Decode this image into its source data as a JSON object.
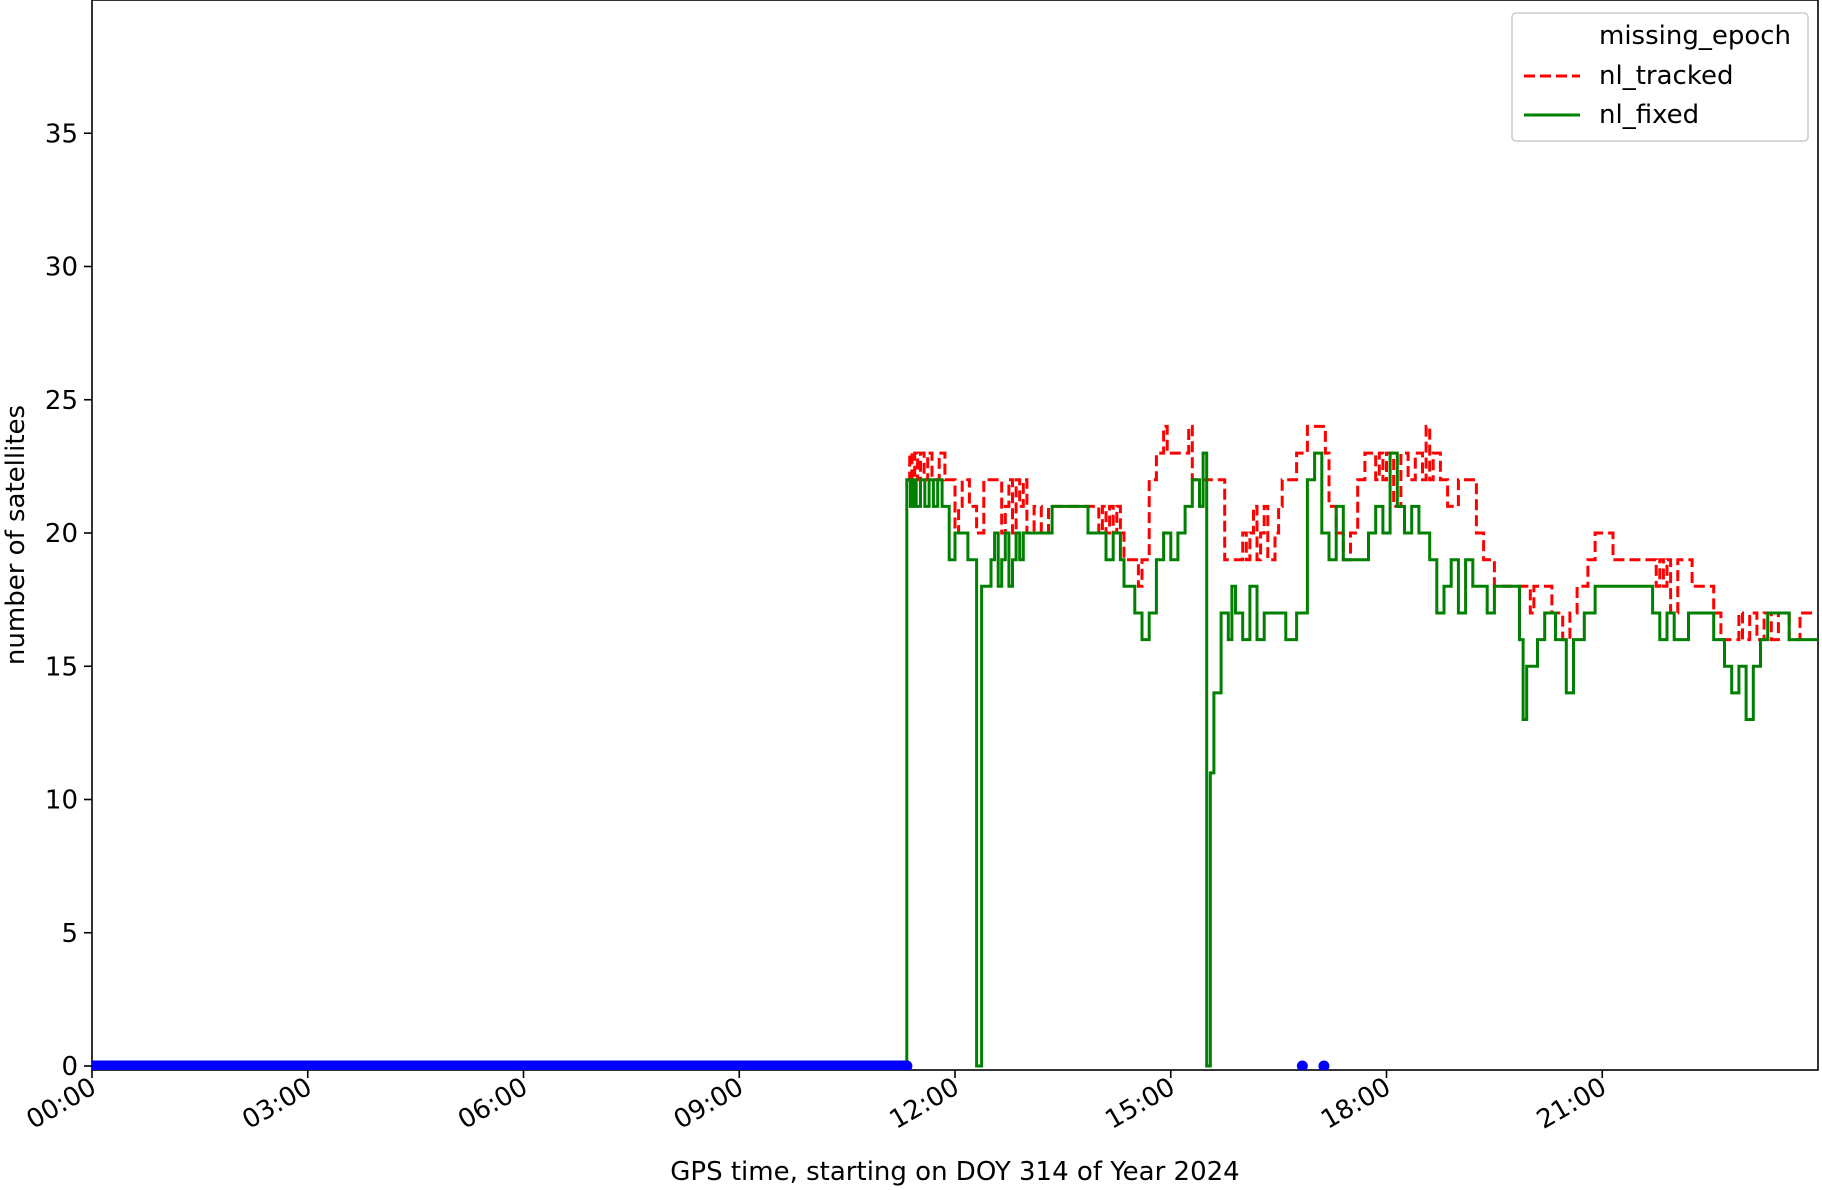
{
  "chart_data": {
    "type": "line",
    "title": "",
    "xlabel": "GPS time, starting on DOY 314 of Year 2024",
    "ylabel": "number of satellites",
    "x_unit": "hours",
    "xlim": [
      0,
      24
    ],
    "ylim": [
      0,
      40
    ],
    "xticks": [
      {
        "value": 0,
        "label": "00:00"
      },
      {
        "value": 3,
        "label": "03:00"
      },
      {
        "value": 6,
        "label": "06:00"
      },
      {
        "value": 9,
        "label": "09:00"
      },
      {
        "value": 12,
        "label": "12:00"
      },
      {
        "value": 15,
        "label": "15:00"
      },
      {
        "value": 18,
        "label": "18:00"
      },
      {
        "value": 21,
        "label": "21:00"
      }
    ],
    "yticks": [
      {
        "value": 0,
        "label": "0"
      },
      {
        "value": 5,
        "label": "5"
      },
      {
        "value": 10,
        "label": "10"
      },
      {
        "value": 15,
        "label": "15"
      },
      {
        "value": 20,
        "label": "20"
      },
      {
        "value": 25,
        "label": "25"
      },
      {
        "value": 30,
        "label": "30"
      },
      {
        "value": 35,
        "label": "35"
      }
    ],
    "grid": false,
    "legend_position": "top-right",
    "series": [
      {
        "name": "missing_epoch",
        "style": "markers",
        "color": "#0000ff",
        "segments": [
          [
            0,
            11.33
          ]
        ],
        "points": [
          [
            16.83,
            0
          ],
          [
            17.13,
            0
          ]
        ]
      },
      {
        "name": "nl_tracked",
        "style": "dashed",
        "color": "#ff0000",
        "points": [
          [
            11.33,
            22
          ],
          [
            11.37,
            23
          ],
          [
            11.4,
            22
          ],
          [
            11.44,
            23
          ],
          [
            11.48,
            22
          ],
          [
            11.52,
            23
          ],
          [
            11.57,
            22
          ],
          [
            11.62,
            23
          ],
          [
            11.68,
            22
          ],
          [
            11.78,
            23
          ],
          [
            11.86,
            22
          ],
          [
            12.0,
            22
          ],
          [
            12.0,
            20
          ],
          [
            12.05,
            21
          ],
          [
            12.1,
            22
          ],
          [
            12.2,
            21
          ],
          [
            12.3,
            20
          ],
          [
            12.4,
            22
          ],
          [
            12.55,
            22
          ],
          [
            12.65,
            20
          ],
          [
            12.7,
            21
          ],
          [
            12.75,
            22
          ],
          [
            12.8,
            20
          ],
          [
            12.85,
            22
          ],
          [
            12.9,
            21
          ],
          [
            12.95,
            22
          ],
          [
            13.0,
            20
          ],
          [
            13.1,
            21
          ],
          [
            13.2,
            20
          ],
          [
            13.3,
            21
          ],
          [
            13.5,
            21
          ],
          [
            13.85,
            21
          ],
          [
            14.0,
            20
          ],
          [
            14.05,
            21
          ],
          [
            14.1,
            20
          ],
          [
            14.15,
            21
          ],
          [
            14.2,
            20
          ],
          [
            14.25,
            21
          ],
          [
            14.3,
            20
          ],
          [
            14.35,
            19
          ],
          [
            14.45,
            19
          ],
          [
            14.55,
            18
          ],
          [
            14.6,
            19
          ],
          [
            14.7,
            22
          ],
          [
            14.8,
            23
          ],
          [
            14.9,
            24
          ],
          [
            14.95,
            23
          ],
          [
            15.15,
            23
          ],
          [
            15.25,
            24
          ],
          [
            15.3,
            22
          ],
          [
            15.5,
            22
          ],
          [
            15.6,
            22
          ],
          [
            15.75,
            22
          ],
          [
            15.75,
            19
          ],
          [
            15.95,
            19
          ],
          [
            16.0,
            20
          ],
          [
            16.05,
            19
          ],
          [
            16.1,
            20
          ],
          [
            16.15,
            21
          ],
          [
            16.2,
            19
          ],
          [
            16.25,
            20
          ],
          [
            16.3,
            21
          ],
          [
            16.35,
            19
          ],
          [
            16.45,
            20
          ],
          [
            16.5,
            21
          ],
          [
            16.55,
            22
          ],
          [
            16.75,
            23
          ],
          [
            16.9,
            24
          ],
          [
            17.1,
            24
          ],
          [
            17.15,
            23
          ],
          [
            17.2,
            21
          ],
          [
            17.3,
            20
          ],
          [
            17.4,
            19
          ],
          [
            17.5,
            20
          ],
          [
            17.6,
            22
          ],
          [
            17.7,
            23
          ],
          [
            17.85,
            22
          ],
          [
            17.9,
            23
          ],
          [
            17.95,
            22
          ],
          [
            18.0,
            23
          ],
          [
            18.1,
            21
          ],
          [
            18.2,
            23
          ],
          [
            18.3,
            22
          ],
          [
            18.4,
            23
          ],
          [
            18.5,
            22
          ],
          [
            18.55,
            24
          ],
          [
            18.6,
            22
          ],
          [
            18.65,
            23
          ],
          [
            18.75,
            22
          ],
          [
            18.85,
            21
          ],
          [
            19.0,
            22
          ],
          [
            19.05,
            22
          ],
          [
            19.15,
            22
          ],
          [
            19.25,
            20
          ],
          [
            19.35,
            19
          ],
          [
            19.45,
            19
          ],
          [
            19.5,
            18
          ],
          [
            19.7,
            18
          ],
          [
            19.85,
            18
          ],
          [
            20.0,
            17
          ],
          [
            20.05,
            18
          ],
          [
            20.15,
            18
          ],
          [
            20.3,
            17
          ],
          [
            20.45,
            16
          ],
          [
            20.55,
            17
          ],
          [
            20.65,
            18
          ],
          [
            20.8,
            19
          ],
          [
            20.9,
            20
          ],
          [
            21.05,
            20
          ],
          [
            21.15,
            19
          ],
          [
            21.45,
            19
          ],
          [
            21.65,
            19
          ],
          [
            21.75,
            18
          ],
          [
            21.8,
            19
          ],
          [
            21.85,
            18
          ],
          [
            21.9,
            19
          ],
          [
            21.95,
            17
          ],
          [
            22.05,
            19
          ],
          [
            22.25,
            18
          ],
          [
            22.4,
            18
          ],
          [
            22.55,
            17
          ],
          [
            22.65,
            16
          ],
          [
            22.75,
            16
          ],
          [
            22.85,
            16
          ],
          [
            22.9,
            17
          ],
          [
            22.95,
            16
          ],
          [
            23.05,
            17
          ],
          [
            23.15,
            16
          ],
          [
            23.25,
            17
          ],
          [
            23.35,
            16
          ],
          [
            23.45,
            17
          ],
          [
            23.6,
            16
          ],
          [
            23.75,
            17
          ],
          [
            23.9,
            17
          ],
          [
            24.0,
            17
          ]
        ]
      },
      {
        "name": "nl_fixed",
        "style": "solid",
        "color": "#008000",
        "points": [
          [
            11.33,
            0
          ],
          [
            11.33,
            22
          ],
          [
            11.38,
            21
          ],
          [
            11.42,
            22
          ],
          [
            11.46,
            21
          ],
          [
            11.52,
            22
          ],
          [
            11.58,
            21
          ],
          [
            11.64,
            22
          ],
          [
            11.7,
            21
          ],
          [
            11.76,
            22
          ],
          [
            11.82,
            21
          ],
          [
            11.92,
            19
          ],
          [
            12.0,
            20
          ],
          [
            12.1,
            20
          ],
          [
            12.18,
            19
          ],
          [
            12.28,
            19
          ],
          [
            12.3,
            0
          ],
          [
            12.37,
            0
          ],
          [
            12.37,
            18
          ],
          [
            12.45,
            18
          ],
          [
            12.5,
            19
          ],
          [
            12.55,
            20
          ],
          [
            12.6,
            18
          ],
          [
            12.65,
            19
          ],
          [
            12.7,
            20
          ],
          [
            12.75,
            18
          ],
          [
            12.8,
            19
          ],
          [
            12.85,
            20
          ],
          [
            12.9,
            19
          ],
          [
            12.95,
            20
          ],
          [
            13.0,
            20
          ],
          [
            13.1,
            20
          ],
          [
            13.25,
            20
          ],
          [
            13.35,
            21
          ],
          [
            13.5,
            21
          ],
          [
            13.75,
            21
          ],
          [
            13.85,
            20
          ],
          [
            14.0,
            20
          ],
          [
            14.1,
            19
          ],
          [
            14.2,
            20
          ],
          [
            14.3,
            19
          ],
          [
            14.35,
            18
          ],
          [
            14.45,
            18
          ],
          [
            14.5,
            17
          ],
          [
            14.6,
            16
          ],
          [
            14.7,
            17
          ],
          [
            14.8,
            19
          ],
          [
            14.9,
            20
          ],
          [
            15.0,
            19
          ],
          [
            15.1,
            20
          ],
          [
            15.2,
            21
          ],
          [
            15.3,
            22
          ],
          [
            15.4,
            21
          ],
          [
            15.45,
            23
          ],
          [
            15.5,
            0
          ],
          [
            15.55,
            0
          ],
          [
            15.55,
            11
          ],
          [
            15.6,
            14
          ],
          [
            15.7,
            17
          ],
          [
            15.8,
            16
          ],
          [
            15.85,
            18
          ],
          [
            15.9,
            17
          ],
          [
            16.0,
            16
          ],
          [
            16.1,
            18
          ],
          [
            16.2,
            16
          ],
          [
            16.3,
            17
          ],
          [
            16.5,
            17
          ],
          [
            16.6,
            16
          ],
          [
            16.75,
            17
          ],
          [
            16.9,
            22
          ],
          [
            17.0,
            23
          ],
          [
            17.1,
            20
          ],
          [
            17.2,
            19
          ],
          [
            17.3,
            21
          ],
          [
            17.4,
            19
          ],
          [
            17.6,
            19
          ],
          [
            17.75,
            20
          ],
          [
            17.85,
            21
          ],
          [
            17.95,
            20
          ],
          [
            18.05,
            23
          ],
          [
            18.15,
            21
          ],
          [
            18.25,
            20
          ],
          [
            18.35,
            21
          ],
          [
            18.45,
            20
          ],
          [
            18.6,
            19
          ],
          [
            18.7,
            17
          ],
          [
            18.8,
            18
          ],
          [
            18.9,
            19
          ],
          [
            19.0,
            17
          ],
          [
            19.1,
            19
          ],
          [
            19.2,
            18
          ],
          [
            19.3,
            18
          ],
          [
            19.4,
            17
          ],
          [
            19.5,
            18
          ],
          [
            19.7,
            18
          ],
          [
            19.85,
            16
          ],
          [
            19.9,
            13
          ],
          [
            19.95,
            15
          ],
          [
            20.1,
            16
          ],
          [
            20.2,
            17
          ],
          [
            20.35,
            16
          ],
          [
            20.5,
            14
          ],
          [
            20.6,
            16
          ],
          [
            20.75,
            17
          ],
          [
            20.9,
            18
          ],
          [
            21.0,
            18
          ],
          [
            21.1,
            18
          ],
          [
            21.45,
            18
          ],
          [
            21.7,
            17
          ],
          [
            21.8,
            16
          ],
          [
            21.9,
            17
          ],
          [
            22.0,
            16
          ],
          [
            22.2,
            17
          ],
          [
            22.4,
            17
          ],
          [
            22.55,
            16
          ],
          [
            22.7,
            15
          ],
          [
            22.8,
            14
          ],
          [
            22.9,
            15
          ],
          [
            23.0,
            13
          ],
          [
            23.1,
            15
          ],
          [
            23.2,
            16
          ],
          [
            23.3,
            17
          ],
          [
            23.5,
            17
          ],
          [
            23.6,
            16
          ],
          [
            23.8,
            16
          ],
          [
            24.0,
            16
          ]
        ]
      }
    ]
  }
}
